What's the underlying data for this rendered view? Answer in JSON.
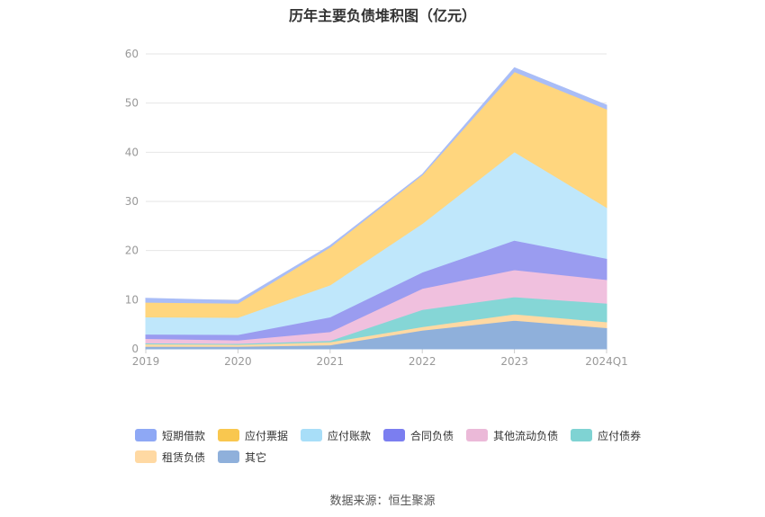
{
  "title": "历年主要负债堆积图（亿元）",
  "source": "数据来源：恒生聚源",
  "chart_data": {
    "type": "area",
    "stacked": true,
    "categories": [
      "2019",
      "2020",
      "2021",
      "2022",
      "2023",
      "2024Q1"
    ],
    "ylim": [
      0,
      60
    ],
    "yticks": [
      0,
      10,
      20,
      30,
      40,
      50,
      60
    ],
    "grid": true,
    "legend_position": "bottom",
    "series": [
      {
        "name": "其它",
        "color": "#8fb0db",
        "values": [
          0.5,
          0.5,
          0.8,
          3.8,
          5.8,
          4.3
        ]
      },
      {
        "name": "租赁负债",
        "color": "#ffd9a3",
        "values": [
          0.5,
          0.4,
          0.6,
          0.7,
          1.3,
          1.2
        ]
      },
      {
        "name": "应付债券",
        "color": "#85d6d6",
        "values": [
          0.2,
          0.2,
          0.3,
          3.5,
          3.5,
          3.8
        ]
      },
      {
        "name": "其他流动负债",
        "color": "#f0c0de",
        "values": [
          0.9,
          0.7,
          1.8,
          4.3,
          5.5,
          4.8
        ]
      },
      {
        "name": "合同负债",
        "color": "#9a9cf0",
        "values": [
          0.9,
          1.1,
          3.0,
          3.3,
          6.0,
          4.3
        ]
      },
      {
        "name": "应付账款",
        "color": "#bfe7fb",
        "values": [
          3.5,
          3.5,
          6.5,
          9.9,
          18.0,
          10.4
        ]
      },
      {
        "name": "应付票据",
        "color": "#ffd67e",
        "values": [
          3.0,
          2.9,
          7.7,
          9.9,
          16.3,
          20.0
        ]
      },
      {
        "name": "短期借款",
        "color": "#a9bdf7",
        "values": [
          0.8,
          0.5,
          0.3,
          0.1,
          0.8,
          0.8
        ]
      }
    ],
    "legend": [
      {
        "name": "短期借款",
        "color": "#8ea8f5"
      },
      {
        "name": "应付票据",
        "color": "#f9c74f"
      },
      {
        "name": "应付账款",
        "color": "#a8def8"
      },
      {
        "name": "合同负债",
        "color": "#7b7ef0"
      },
      {
        "name": "其他流动负债",
        "color": "#ebb9d8"
      },
      {
        "name": "应付债券",
        "color": "#7fd3d3"
      },
      {
        "name": "租赁负债",
        "color": "#ffd9a3"
      },
      {
        "name": "其它",
        "color": "#8fb0db"
      }
    ]
  }
}
